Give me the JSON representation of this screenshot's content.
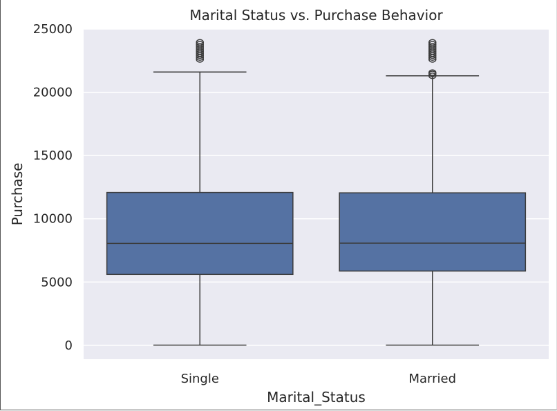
{
  "chart_data": {
    "type": "box",
    "title": "Marital Status vs. Purchase Behavior",
    "xlabel": "Marital_Status",
    "ylabel": "Purchase",
    "ylim": [
      -1100,
      25000
    ],
    "yticks": [
      "0",
      "5000",
      "10000",
      "15000",
      "20000",
      "25000"
    ],
    "ytick_values": [
      0,
      5000,
      10000,
      15000,
      20000,
      25000
    ],
    "grid": true,
    "colors": {
      "box": "#5572a3",
      "background": "#eaeaf2",
      "line": "#3b3b3b",
      "grid": "#ffffff"
    },
    "categories": [
      "Single",
      "Married"
    ],
    "boxes": [
      {
        "category": "Single",
        "min": 12,
        "q1": 5600,
        "median": 8050,
        "q3": 12080,
        "max": 21600,
        "outliers": [
          22600,
          22750,
          22900,
          23050,
          23200,
          23350,
          23500,
          23650,
          23800,
          23950
        ]
      },
      {
        "category": "Married",
        "min": 12,
        "q1": 5870,
        "median": 8070,
        "q3": 12050,
        "max": 21300,
        "outliers": [
          21300,
          21450,
          21550,
          22600,
          22750,
          22900,
          23050,
          23200,
          23350,
          23500,
          23650,
          23800,
          23950
        ]
      }
    ]
  }
}
